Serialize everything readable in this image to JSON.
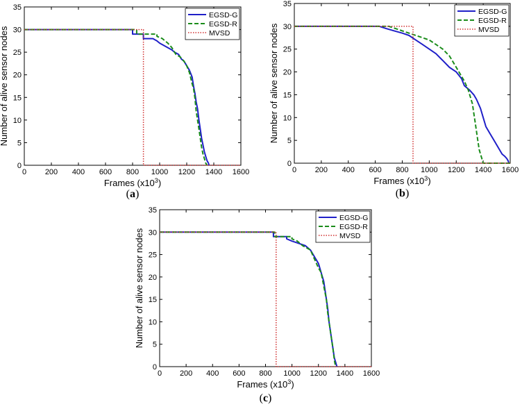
{
  "figure": {
    "background": "#ffffff"
  },
  "chart_data": [
    {
      "panel_label": "(a)",
      "type": "line",
      "xlabel": "Frames (x10",
      "xlabel_sup": "3",
      "xlabel_close": ")",
      "ylabel": "Number of alive sensor nodes",
      "xlim": [
        0,
        1600
      ],
      "ylim": [
        0,
        35
      ],
      "xticks": [
        0,
        200,
        400,
        600,
        800,
        1000,
        1200,
        1400,
        1600
      ],
      "yticks": [
        0,
        5,
        10,
        15,
        20,
        25,
        30,
        35
      ],
      "grid": false,
      "legend_position": "top-right",
      "series": [
        {
          "name": "EGSD-G",
          "color": "#1f1fc8",
          "style": "solid",
          "width": 2,
          "x": [
            0,
            800,
            800,
            880,
            880,
            950,
            980,
            1000,
            1030,
            1060,
            1090,
            1110,
            1140,
            1160,
            1180,
            1200,
            1220,
            1240,
            1250,
            1260,
            1270,
            1280,
            1290,
            1300,
            1310,
            1320,
            1330,
            1340,
            1350,
            1360,
            1365
          ],
          "y": [
            30,
            30,
            29,
            29,
            28,
            28,
            27.5,
            27,
            26.5,
            26,
            25.5,
            25,
            24.5,
            23.5,
            23,
            22,
            21,
            19.5,
            17.5,
            16,
            14,
            12.5,
            10,
            8,
            6,
            4.5,
            3,
            2,
            1,
            0.5,
            0
          ]
        },
        {
          "name": "EGSD-R",
          "color": "#1a8c1a",
          "style": "dashed",
          "width": 2,
          "x": [
            0,
            830,
            830,
            980,
            980,
            1020,
            1060,
            1090,
            1120,
            1150,
            1180,
            1200,
            1220,
            1240,
            1250,
            1260,
            1270,
            1280,
            1290,
            1300,
            1310,
            1320,
            1330,
            1340,
            1350
          ],
          "y": [
            30,
            30,
            29,
            29,
            28.5,
            28,
            27,
            26,
            24.5,
            24,
            23,
            22,
            20.5,
            18,
            17,
            15,
            12,
            10,
            8,
            6,
            4,
            2.5,
            1.5,
            0.5,
            0
          ]
        },
        {
          "name": "MVSD",
          "color": "#d03030",
          "style": "dotted",
          "width": 1.5,
          "x": [
            0,
            880,
            880,
            1600
          ],
          "y": [
            30,
            30,
            0,
            0
          ]
        }
      ]
    },
    {
      "panel_label": "(b)",
      "type": "line",
      "xlabel": "Frames (x10",
      "xlabel_sup": "3",
      "xlabel_close": ")",
      "ylabel": "Number of alive sensor nodes",
      "xlim": [
        0,
        1600
      ],
      "ylim": [
        0,
        35
      ],
      "xticks": [
        0,
        200,
        400,
        600,
        800,
        1000,
        1200,
        1400,
        1600
      ],
      "yticks": [
        0,
        5,
        10,
        15,
        20,
        25,
        30,
        35
      ],
      "grid": false,
      "legend_position": "top-right",
      "series": [
        {
          "name": "EGSD-G",
          "color": "#1f1fc8",
          "style": "solid",
          "width": 2,
          "x": [
            0,
            630,
            680,
            740,
            800,
            850,
            900,
            950,
            1000,
            1050,
            1100,
            1150,
            1200,
            1240,
            1260,
            1300,
            1330,
            1350,
            1380,
            1400,
            1420,
            1450,
            1480,
            1510,
            1540,
            1560,
            1575,
            1585,
            1590
          ],
          "y": [
            30,
            30,
            29.5,
            29,
            28.5,
            28,
            27,
            26,
            25,
            24,
            22.5,
            21,
            20,
            18.5,
            17,
            16,
            15,
            14,
            12,
            10,
            8,
            6.5,
            5,
            3.5,
            2,
            1.5,
            1,
            0.5,
            0
          ]
        },
        {
          "name": "EGSD-R",
          "color": "#1a8c1a",
          "style": "dashed",
          "width": 2,
          "x": [
            0,
            700,
            750,
            800,
            850,
            900,
            950,
            1000,
            1050,
            1100,
            1150,
            1200,
            1230,
            1260,
            1290,
            1310,
            1320,
            1330,
            1340,
            1350,
            1360,
            1370,
            1380,
            1390,
            1400,
            1600
          ],
          "y": [
            30,
            30,
            29.5,
            29,
            28.5,
            28,
            27.5,
            27,
            26,
            25,
            23.5,
            21,
            19.5,
            18,
            16,
            14,
            13,
            11,
            9,
            7,
            5,
            3,
            2,
            1,
            0,
            0
          ]
        },
        {
          "name": "MVSD",
          "color": "#d03030",
          "style": "dotted",
          "width": 1.5,
          "x": [
            0,
            880,
            880,
            1600
          ],
          "y": [
            30,
            30,
            0,
            0
          ]
        }
      ]
    },
    {
      "panel_label": "(c)",
      "type": "line",
      "xlabel": "Frames (x10",
      "xlabel_sup": "3",
      "xlabel_close": ")",
      "ylabel": "Number of alive sensor nodes",
      "xlim": [
        0,
        1600
      ],
      "ylim": [
        0,
        35
      ],
      "xticks": [
        0,
        200,
        400,
        600,
        800,
        1000,
        1200,
        1400,
        1600
      ],
      "yticks": [
        0,
        5,
        10,
        15,
        20,
        25,
        30,
        35
      ],
      "grid": false,
      "legend_position": "top-right",
      "series": [
        {
          "name": "EGSD-G",
          "color": "#1f1fc8",
          "style": "solid",
          "width": 2,
          "x": [
            0,
            860,
            860,
            960,
            960,
            1000,
            1050,
            1100,
            1140,
            1170,
            1200,
            1220,
            1240,
            1250,
            1260,
            1270,
            1280,
            1290,
            1300,
            1310,
            1320,
            1330,
            1340
          ],
          "y": [
            30,
            30,
            29,
            29,
            28.5,
            28,
            27.5,
            27,
            26,
            24.5,
            23,
            21,
            19,
            17,
            15,
            13,
            10,
            8,
            6,
            4,
            2,
            1,
            0
          ]
        },
        {
          "name": "EGSD-R",
          "color": "#1a8c1a",
          "style": "dashed",
          "width": 2,
          "x": [
            0,
            870,
            870,
            1000,
            1000,
            1040,
            1080,
            1110,
            1140,
            1170,
            1200,
            1220,
            1240,
            1250,
            1260,
            1270,
            1280,
            1290,
            1300,
            1310,
            1320,
            1330
          ],
          "y": [
            30,
            30,
            29,
            29,
            28.5,
            28,
            27,
            26.5,
            26,
            24,
            22,
            21,
            18,
            16.5,
            15,
            12,
            10,
            8,
            6,
            4,
            1.5,
            0
          ]
        },
        {
          "name": "MVSD",
          "color": "#d03030",
          "style": "dotted",
          "width": 1.5,
          "x": [
            0,
            880,
            880,
            1600
          ],
          "y": [
            30,
            30,
            0,
            0
          ]
        }
      ]
    }
  ]
}
